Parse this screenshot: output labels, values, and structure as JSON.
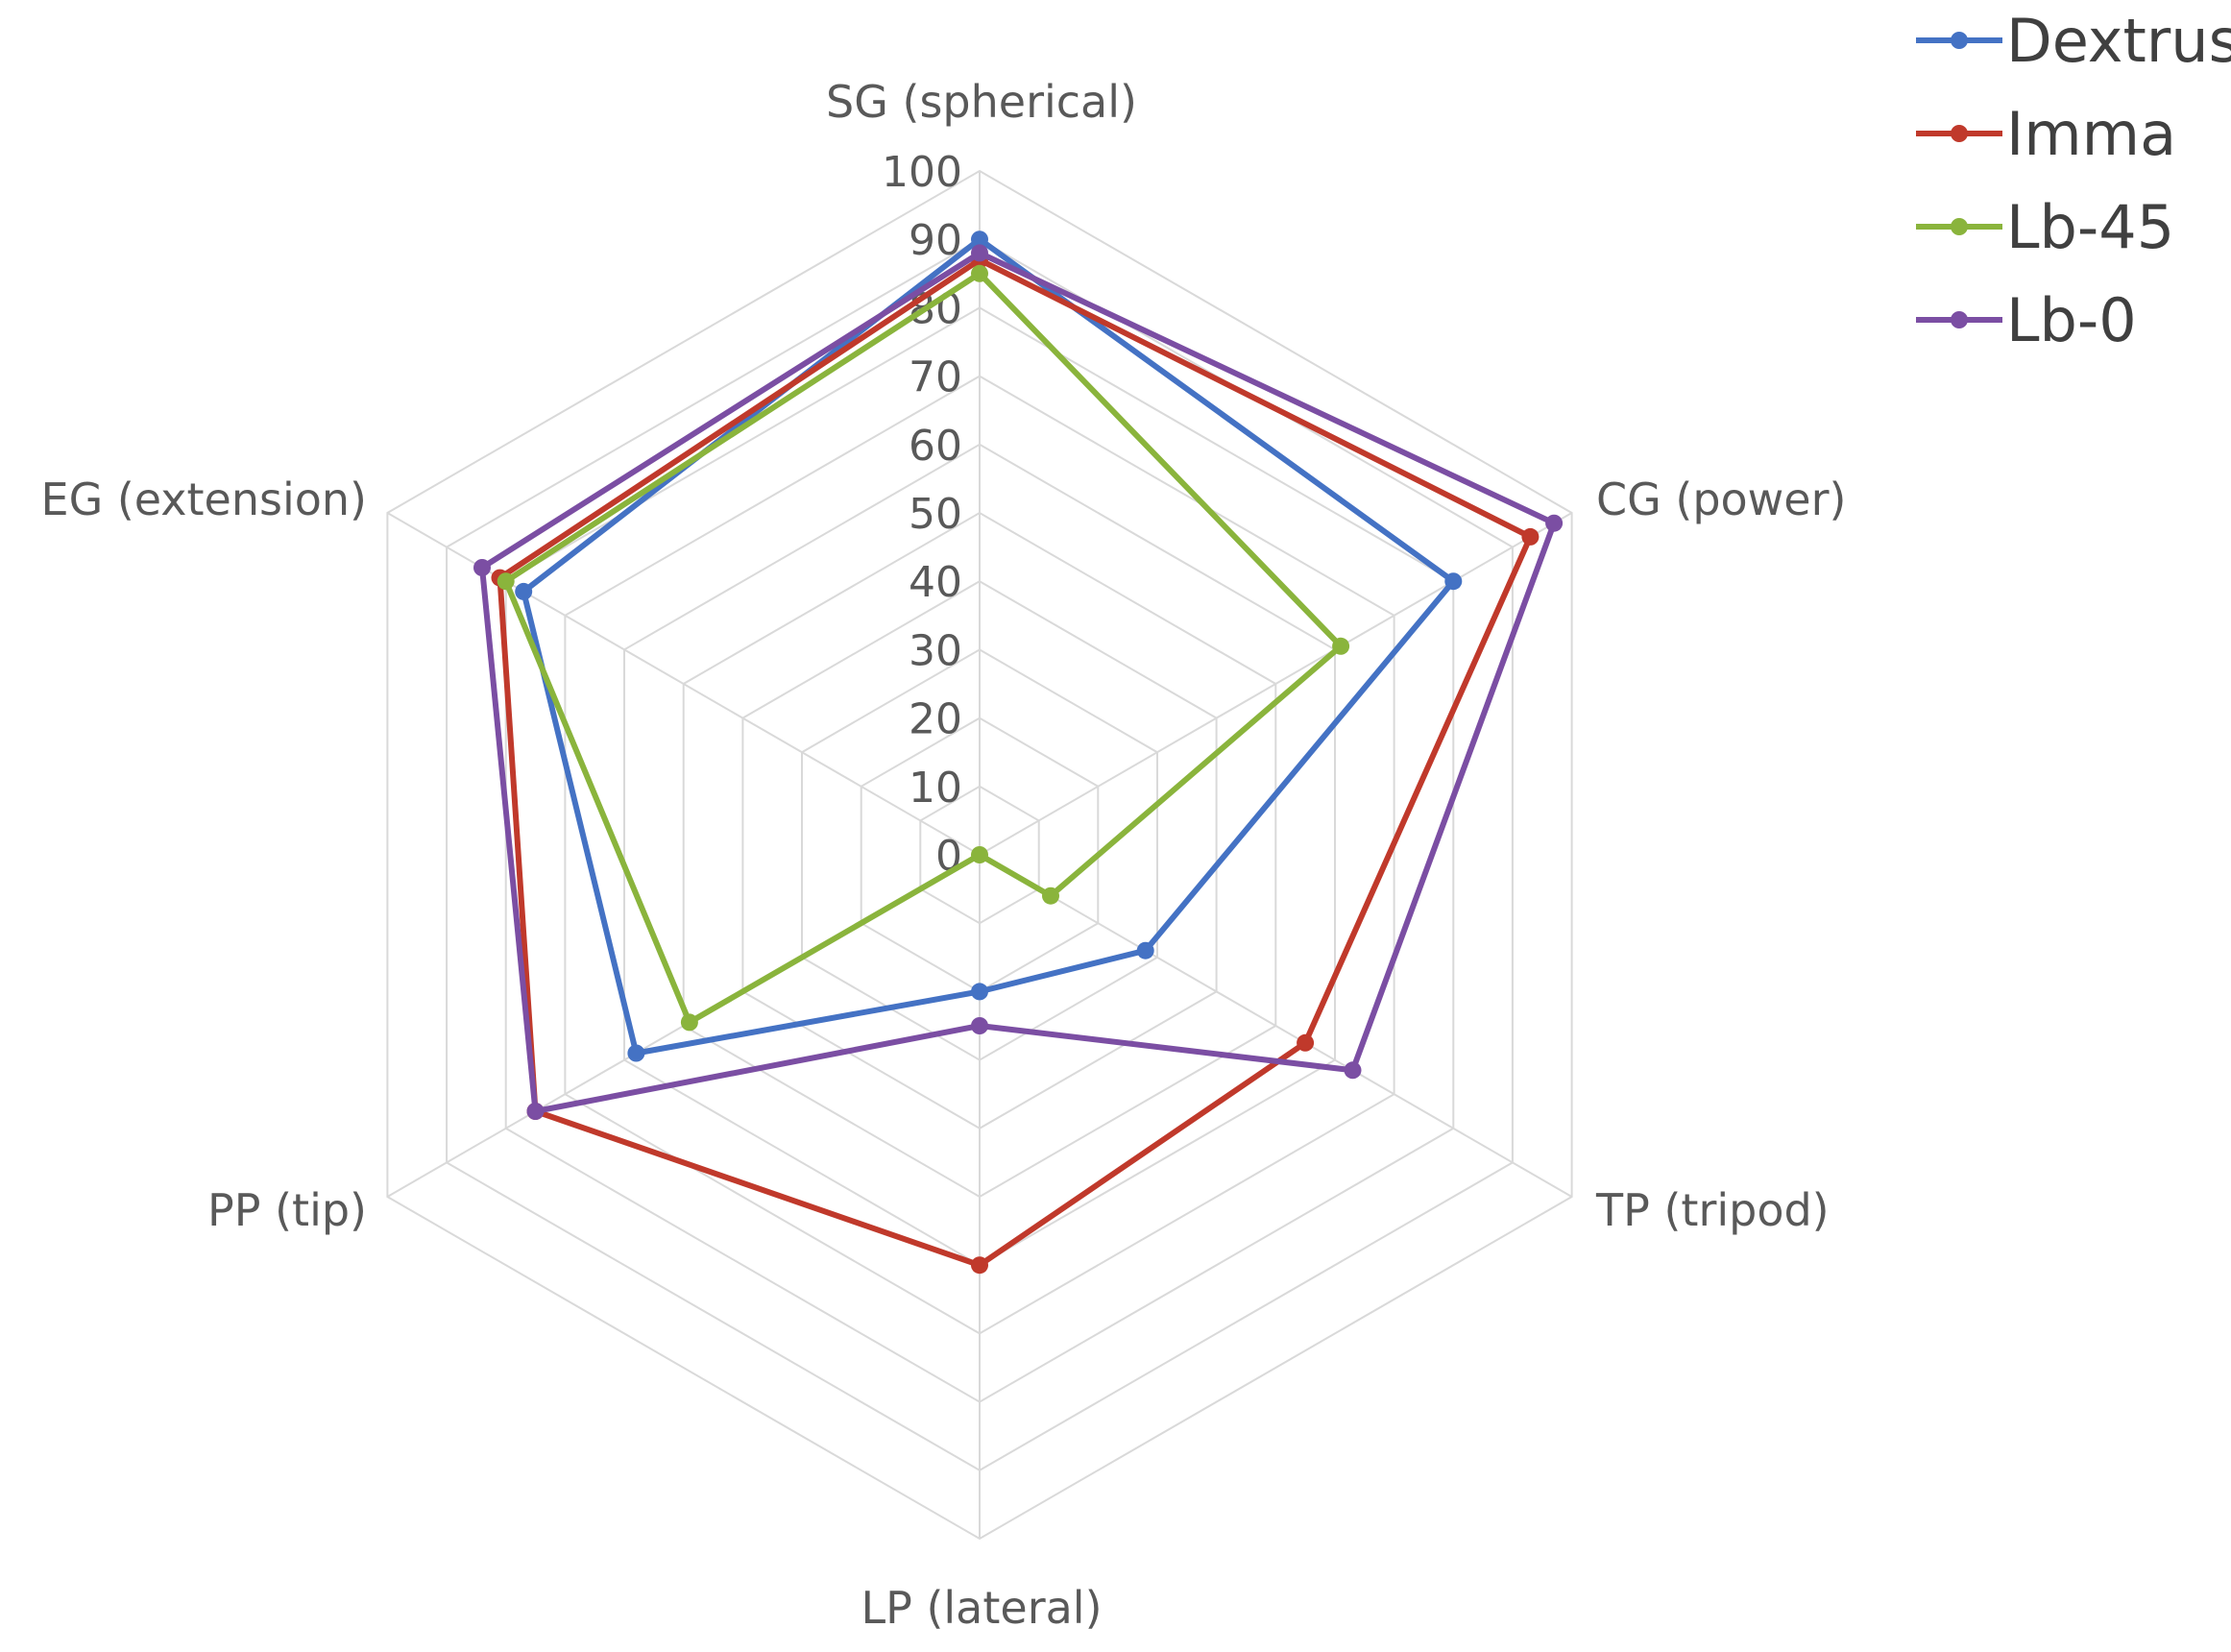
{
  "chart_data": {
    "type": "radar",
    "title": "",
    "axes": [
      "SG (spherical)",
      "CG (power)",
      "TP (tripod)",
      "LP (lateral)",
      "PP (tip)",
      "EG (extension)"
    ],
    "ticks": [
      0,
      10,
      20,
      30,
      40,
      50,
      60,
      70,
      80,
      90,
      100
    ],
    "range": [
      0,
      100
    ],
    "legend_position": "top-right",
    "series": [
      {
        "name": "Dextrus",
        "color": "#4472c4",
        "values": [
          90,
          80,
          28,
          20,
          58,
          77
        ]
      },
      {
        "name": "Imma",
        "color": "#c0392b",
        "values": [
          87,
          93,
          55,
          60,
          75,
          81
        ]
      },
      {
        "name": "Lb-45",
        "color": "#8ab43c",
        "values": [
          85,
          61,
          12,
          0,
          49,
          80
        ]
      },
      {
        "name": "Lb-0",
        "color": "#7b4ea3",
        "values": [
          88,
          97,
          63,
          25,
          75,
          84
        ]
      }
    ]
  }
}
